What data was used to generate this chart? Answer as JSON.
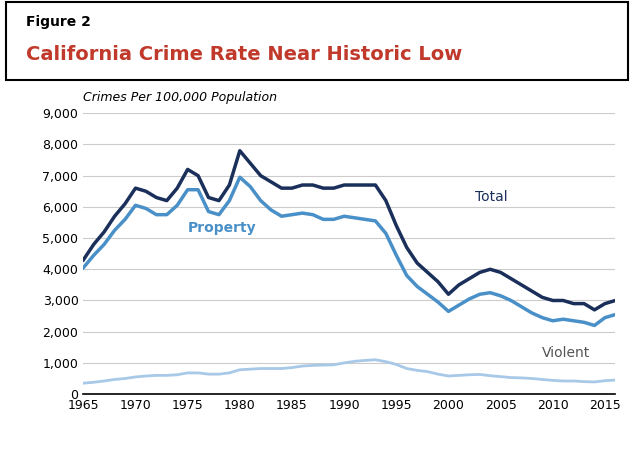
{
  "figure_label": "Figure 2",
  "title": "California Crime Rate Near Historic Low",
  "subtitle": "Crimes Per 100,000 Population",
  "title_color": "#C0392B",
  "figure_label_color": "#000000",
  "years": [
    1965,
    1966,
    1967,
    1968,
    1969,
    1970,
    1971,
    1972,
    1973,
    1974,
    1975,
    1976,
    1977,
    1978,
    1979,
    1980,
    1981,
    1982,
    1983,
    1984,
    1985,
    1986,
    1987,
    1988,
    1989,
    1990,
    1991,
    1992,
    1993,
    1994,
    1995,
    1996,
    1997,
    1998,
    1999,
    2000,
    2001,
    2002,
    2003,
    2004,
    2005,
    2006,
    2007,
    2008,
    2009,
    2010,
    2011,
    2012,
    2013,
    2014,
    2015,
    2016
  ],
  "total": [
    4300,
    4800,
    5200,
    5700,
    6100,
    6600,
    6500,
    6300,
    6200,
    6600,
    7200,
    7000,
    6300,
    6200,
    6700,
    7800,
    7400,
    7000,
    6800,
    6600,
    6600,
    6700,
    6700,
    6600,
    6600,
    6700,
    6700,
    6700,
    6700,
    6200,
    5400,
    4700,
    4200,
    3900,
    3600,
    3200,
    3500,
    3700,
    3900,
    4000,
    3900,
    3700,
    3500,
    3300,
    3100,
    3000,
    3000,
    2900,
    2900,
    2700,
    2900,
    3000
  ],
  "property": [
    4050,
    4450,
    4800,
    5250,
    5600,
    6050,
    5950,
    5750,
    5750,
    6050,
    6550,
    6550,
    5850,
    5750,
    6200,
    6950,
    6650,
    6200,
    5900,
    5700,
    5750,
    5800,
    5750,
    5600,
    5600,
    5700,
    5650,
    5600,
    5550,
    5150,
    4450,
    3800,
    3450,
    3200,
    2950,
    2650,
    2850,
    3050,
    3200,
    3250,
    3150,
    3000,
    2800,
    2600,
    2450,
    2350,
    2400,
    2350,
    2300,
    2200,
    2450,
    2550
  ],
  "violent": [
    350,
    380,
    420,
    470,
    500,
    550,
    580,
    600,
    600,
    620,
    680,
    680,
    640,
    640,
    680,
    780,
    800,
    820,
    820,
    820,
    850,
    900,
    920,
    930,
    940,
    1000,
    1050,
    1080,
    1100,
    1040,
    950,
    820,
    760,
    720,
    640,
    580,
    600,
    620,
    630,
    590,
    560,
    530,
    520,
    500,
    470,
    440,
    420,
    420,
    400,
    390,
    430,
    450
  ],
  "total_color": "#1a2f5a",
  "property_color": "#4a90c8",
  "violent_color": "#a8c8e8",
  "ylim": [
    0,
    9000
  ],
  "yticks": [
    0,
    1000,
    2000,
    3000,
    4000,
    5000,
    6000,
    7000,
    8000,
    9000
  ],
  "xlim": [
    1965,
    2016
  ],
  "xticks": [
    1965,
    1970,
    1975,
    1980,
    1985,
    1990,
    1995,
    2000,
    2005,
    2010,
    2015
  ],
  "bg_color": "#ffffff",
  "grid_color": "#cccccc",
  "label_total": "Total",
  "label_property": "Property",
  "label_violent": "Violent"
}
